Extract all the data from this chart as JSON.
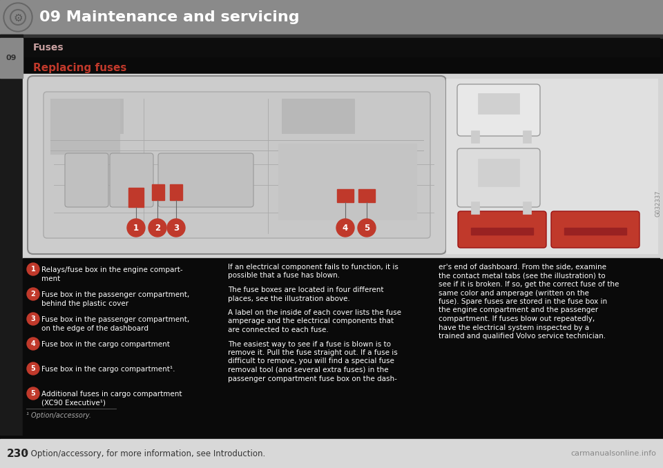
{
  "bg_color": "#0a0a0a",
  "header_bg": "#8a8a8a",
  "header_text": "09 Maintenance and servicing",
  "header_text_color": "#ffffff",
  "header_font_size": 16,
  "section_bar_bg": "#0a0a0a",
  "section_text": "Fuses",
  "section_text_color": "#c8a0a0",
  "section_num_color": "#bbbbbb",
  "section_num": "09",
  "left_tab_bg": "#888888",
  "subheader_text": "Replacing fuses",
  "subheader_color": "#c0392b",
  "main_image_bg": "#d8d8d8",
  "main_image_border": "#aaaaaa",
  "callout_color": "#c0392b",
  "callout_text_color": "#ffffff",
  "bottom_bar_bg": "#d8d8d8",
  "bottom_text": "* Option/accessory, for more information, see Introduction.",
  "bottom_page": "230",
  "watermark": "carmanualsonline.info",
  "text_color": "#ffffff",
  "body_col1_items": [
    {
      "num": "1",
      "text": "Relays/fuse box in the engine compart-\nment"
    },
    {
      "num": "2",
      "text": "Fuse box in the passenger compartment,\nbehind the plastic cover"
    },
    {
      "num": "3",
      "text": "Fuse box in the passenger compartment,\non the edge of the dashboard"
    },
    {
      "num": "4",
      "text": "Fuse box in the cargo compartment"
    },
    {
      "num": "5",
      "text": "Fuse box in the cargo compartment¹."
    },
    {
      "num": "5",
      "text": "Additional fuses in cargo compartment\n(XC90 Executive¹)"
    }
  ],
  "col2_paras": [
    "If an electrical component fails to function, it is\npossible that a fuse has blown.",
    "The fuse boxes are located in four different\nplaces, see the illustration above.",
    "A label on the inside of each cover lists the fuse\namperage and the electrical components that\nare connected to each fuse.",
    "The easiest way to see if a fuse is blown is to\nremove it. Pull the fuse straight out. If a fuse is\ndifficult to remove, you will find a special fuse\nremoval tool (and several extra fuses) in the\npassenger compartment fuse box on the dash-"
  ],
  "col3_para": "er's end of dashboard. From the side, examine\nthe contact metal tabs (see the illustration) to\nsee if it is broken. If so, get the correct fuse of the\nsame color and amperage (written on the\nfuse). Spare fuses are stored in the fuse box in\nthe engine compartment and the passenger\ncompartment. If fuses blow out repeatedly,\nhave the electrical system inspected by a\ntrained and qualified Volvo service technician.",
  "footnote": "¹ Option/accessory.",
  "image_code": "G032337",
  "car_image_bg": "#d4d4d4",
  "car_line_color": "#888888",
  "inset_bg": "#e0e0e0",
  "inset_border": "#888888"
}
